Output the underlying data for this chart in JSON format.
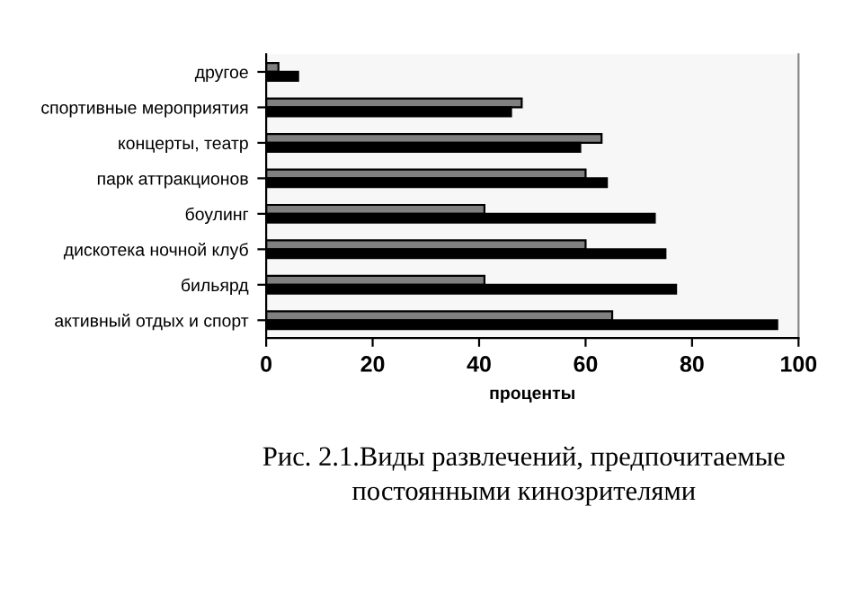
{
  "chart_data": {
    "type": "bar",
    "orientation": "horizontal",
    "xlabel": "проценты",
    "categories": [
      "другое",
      "спортивные мероприятия",
      "концерты, театр",
      "парк аттракционов",
      "боулинг",
      "дискотека ночной клуб",
      "бильярд",
      "активный отдых и спорт"
    ],
    "series": [
      {
        "color": "#808080",
        "values": [
          2.3,
          48,
          63,
          60,
          41,
          60,
          41,
          65
        ]
      },
      {
        "color": "#000000",
        "values": [
          6,
          46,
          59,
          64,
          73,
          75,
          77,
          96
        ]
      }
    ],
    "xlim": [
      0,
      100
    ],
    "xticks": [
      0,
      20,
      40,
      60,
      80,
      100
    ],
    "grid": false,
    "legend": false,
    "annotations": [
      "Рис. 2.1.Виды развлечений, предпочитаемые\nпостоянными кинозрителями"
    ]
  }
}
